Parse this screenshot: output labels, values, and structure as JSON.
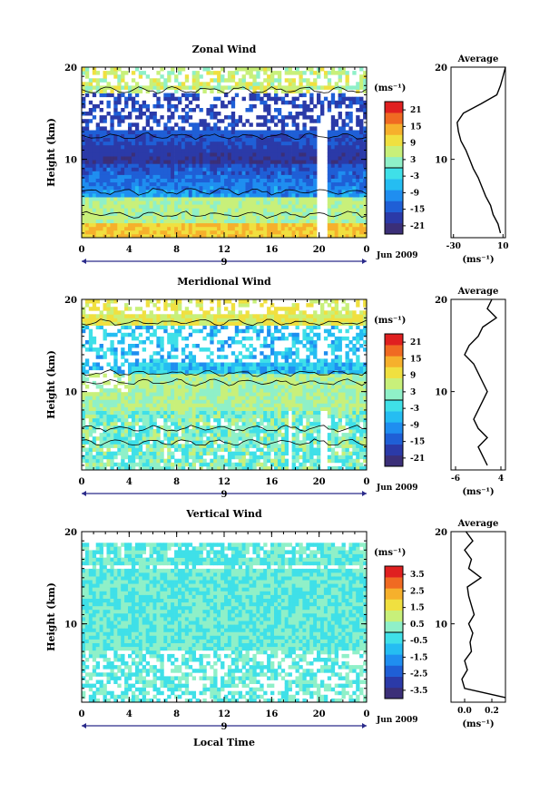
{
  "date_label": "Jun 2009",
  "x_day_label": "9",
  "x_axis_label": "Local Time",
  "y_axis_label": "Height (km)",
  "colorbar_unit": "(ms⁻¹)",
  "profile_unit": "(ms⁻¹)",
  "profile_title": "Average",
  "chart_data": [
    {
      "type": "heatmap",
      "title": "Zonal Wind",
      "xlabel": "",
      "ylabel": "Height (km)",
      "x_ticks": [
        "0",
        "4",
        "8",
        "12",
        "16",
        "20",
        "0"
      ],
      "y_ticks": [
        "10",
        "20"
      ],
      "xlim": [
        0,
        24
      ],
      "ylim": [
        1.5,
        20
      ],
      "colorbar": {
        "ticks": [
          "21",
          "15",
          "9",
          "3",
          "-3",
          "-9",
          "-15",
          "-21"
        ],
        "range": [
          -24,
          24
        ]
      },
      "profile": {
        "title": "Average",
        "x_ticks": [
          "-30",
          "10"
        ],
        "xlim": [
          -32,
          12
        ],
        "heights": [
          2,
          3,
          4,
          5,
          6,
          7,
          8,
          9,
          10,
          11,
          12,
          13,
          14,
          15,
          16,
          17,
          18,
          19,
          20
        ],
        "values": [
          8,
          6,
          2,
          0,
          -4,
          -7,
          -10,
          -14,
          -17,
          -20,
          -24,
          -26,
          -27,
          -22,
          -8,
          5,
          8,
          10,
          12
        ]
      }
    },
    {
      "type": "heatmap",
      "title": "Meridional Wind",
      "xlabel": "",
      "ylabel": "Height (km)",
      "x_ticks": [
        "0",
        "4",
        "8",
        "12",
        "16",
        "20",
        "0"
      ],
      "y_ticks": [
        "10",
        "20"
      ],
      "xlim": [
        0,
        24
      ],
      "ylim": [
        1.5,
        20
      ],
      "colorbar": {
        "ticks": [
          "21",
          "15",
          "9",
          "3",
          "-3",
          "-9",
          "-15",
          "-21"
        ],
        "range": [
          -24,
          24
        ]
      },
      "profile": {
        "title": "Average",
        "x_ticks": [
          "-6",
          "4"
        ],
        "xlim": [
          -7,
          5
        ],
        "heights": [
          2,
          3,
          4,
          5,
          6,
          7,
          8,
          9,
          10,
          11,
          12,
          13,
          14,
          15,
          16,
          17,
          18,
          19,
          20
        ],
        "values": [
          1,
          0,
          -1,
          1,
          -1,
          -2,
          -1,
          0,
          1,
          0,
          -1,
          -2,
          -4,
          -3,
          -1,
          0,
          3,
          1,
          2
        ]
      }
    },
    {
      "type": "heatmap",
      "title": "Vertical Wind",
      "xlabel": "Local Time",
      "ylabel": "Height (km)",
      "x_ticks": [
        "0",
        "4",
        "8",
        "12",
        "16",
        "20",
        "0"
      ],
      "y_ticks": [
        "10",
        "20"
      ],
      "xlim": [
        0,
        24
      ],
      "ylim": [
        1.5,
        20
      ],
      "colorbar": {
        "ticks": [
          "3.5",
          "2.5",
          "1.5",
          "0.5",
          "-0.5",
          "-1.5",
          "-2.5",
          "-3.5"
        ],
        "range": [
          -4,
          4
        ]
      },
      "profile": {
        "title": "Average",
        "x_ticks": [
          "0.0",
          "0.2"
        ],
        "xlim": [
          -0.1,
          0.3
        ],
        "heights": [
          2,
          3,
          4,
          5,
          6,
          7,
          8,
          9,
          10,
          11,
          12,
          13,
          14,
          15,
          16,
          17,
          18,
          19,
          20
        ],
        "values": [
          0.3,
          0.0,
          -0.02,
          0.02,
          0.0,
          0.05,
          0.04,
          0.06,
          0.03,
          0.07,
          0.05,
          0.03,
          0.02,
          0.12,
          0.03,
          0.05,
          0.0,
          0.06,
          0.01
        ]
      }
    }
  ]
}
